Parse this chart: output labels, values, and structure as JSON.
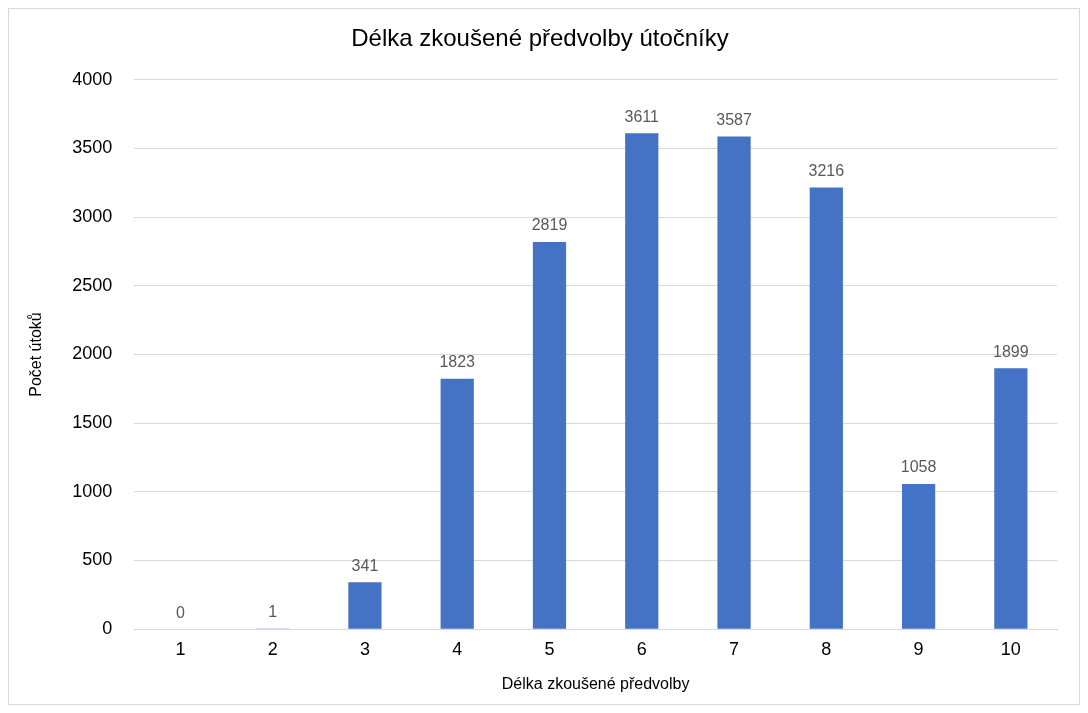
{
  "chart_data": {
    "type": "bar",
    "title": "Délka zkoušené předvolby útočníky",
    "xlabel": "Délka zkoušené předvolby",
    "ylabel": "Počet útoků",
    "categories": [
      "1",
      "2",
      "3",
      "4",
      "5",
      "6",
      "7",
      "8",
      "9",
      "10"
    ],
    "values": [
      0,
      1,
      341,
      1823,
      2819,
      3611,
      3587,
      3216,
      1058,
      1899
    ],
    "color": "#4472c4",
    "ylim": [
      0,
      4000
    ],
    "yticks": [
      0,
      500,
      1000,
      1500,
      2000,
      2500,
      3000,
      3500,
      4000
    ],
    "grid": "y",
    "data_labels": true
  }
}
